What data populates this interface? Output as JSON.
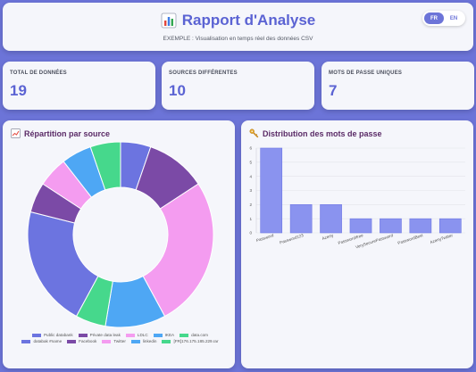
{
  "header": {
    "title": "Rapport d'Analyse",
    "subtitle": "EXEMPLE : Visualisation en temps réel des données CSV",
    "title_icon": "bar-chart-icon",
    "lang": {
      "fr": "FR",
      "en": "EN",
      "active": "FR"
    }
  },
  "stats": [
    {
      "label": "TOTAL DE DONNÉES",
      "value": "19"
    },
    {
      "label": "SOURCES DIFFÉRENTES",
      "value": "10"
    },
    {
      "label": "MOTS DE PASSE UNIQUES",
      "value": "7"
    }
  ],
  "panels": {
    "source": {
      "title": "Répartition par source",
      "icon": "chart-up-icon"
    },
    "passwords": {
      "title": "Distribution des mots de passe",
      "icon": "key-icon"
    }
  },
  "colors": {
    "accent": "#6c74d8",
    "title_purple": "#5b63d3"
  },
  "chart_data": [
    {
      "type": "pie",
      "subtype": "donut",
      "categories": [
        "Public databank",
        "Private data leak",
        "LDLC",
        "IKEA",
        "data.com",
        "databak #name",
        "Facebook",
        "Twitter",
        "linkedin",
        "[FR]176.175.185.229.rar"
      ],
      "values": [
        1,
        2,
        5,
        2,
        1,
        4,
        1,
        1,
        1,
        1
      ],
      "colors": [
        "#6c74e0",
        "#7b4aa6",
        "#f49cf0",
        "#4ea7f4",
        "#46d88c",
        "#6c74e0",
        "#7b4aa6",
        "#f49cf0",
        "#4ea7f4",
        "#46d88c"
      ],
      "legend": "bottom"
    },
    {
      "type": "bar",
      "categories": [
        "Password",
        "Password123",
        "Azerty",
        "Password!free",
        "VerySecurePassword",
        "PasswordBest",
        "AzertyTwitter"
      ],
      "values": [
        6,
        2,
        2,
        1,
        1,
        1,
        1
      ],
      "ylim": [
        0,
        6
      ],
      "yticks": [
        "0",
        "1",
        "2",
        "3",
        "4",
        "5",
        "6"
      ],
      "grid": true,
      "color": "#8a93ef"
    }
  ]
}
